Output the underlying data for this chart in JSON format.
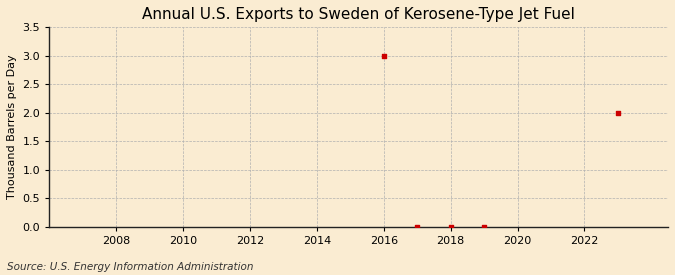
{
  "title": "Annual U.S. Exports to Sweden of Kerosene-Type Jet Fuel",
  "ylabel": "Thousand Barrels per Day",
  "source": "Source: U.S. Energy Information Administration",
  "background_color": "#faecd2",
  "plot_bg_color": "#faecd2",
  "data_points": [
    {
      "year": 2016,
      "value": 3.0
    },
    {
      "year": 2017,
      "value": 0.0
    },
    {
      "year": 2018,
      "value": 0.0
    },
    {
      "year": 2019,
      "value": 0.0
    },
    {
      "year": 2023,
      "value": 2.0
    }
  ],
  "marker_color": "#cc0000",
  "marker_size": 3.5,
  "xlim_left": 2006.0,
  "xlim_right": 2024.5,
  "ylim_bottom": 0.0,
  "ylim_top": 3.5,
  "yticks": [
    0.0,
    0.5,
    1.0,
    1.5,
    2.0,
    2.5,
    3.0,
    3.5
  ],
  "xticks": [
    2008,
    2010,
    2012,
    2014,
    2016,
    2018,
    2020,
    2022
  ],
  "grid_color": "#b0b0b0",
  "grid_linestyle": "--",
  "grid_linewidth": 0.5,
  "title_fontsize": 11,
  "title_fontweight": "normal",
  "axis_label_fontsize": 8,
  "tick_fontsize": 8,
  "source_fontsize": 7.5
}
